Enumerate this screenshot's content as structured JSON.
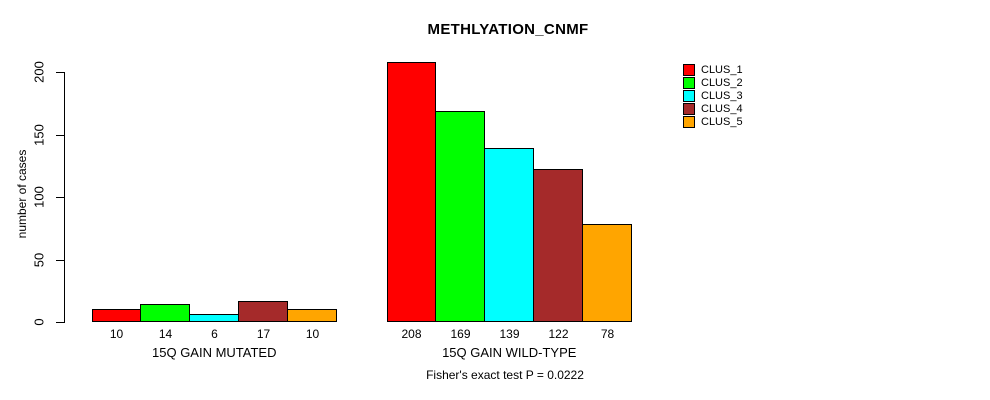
{
  "chart_data": {
    "type": "bar",
    "title": "METHLYATION_CNMF",
    "xlabel": "",
    "ylabel": "number of cases",
    "categories": [
      "15Q GAIN MUTATED",
      "15Q GAIN WILD-TYPE"
    ],
    "series": [
      {
        "name": "CLUS_1",
        "color": "#FF0000",
        "values": [
          10,
          208
        ]
      },
      {
        "name": "CLUS_2",
        "color": "#00FF00",
        "values": [
          14,
          169
        ]
      },
      {
        "name": "CLUS_3",
        "color": "#00FFFF",
        "values": [
          6,
          139
        ]
      },
      {
        "name": "CLUS_4",
        "color": "#A52A2A",
        "values": [
          17,
          122
        ]
      },
      {
        "name": "CLUS_5",
        "color": "#FFA500",
        "values": [
          10,
          78
        ]
      }
    ],
    "yticks": [
      0,
      50,
      100,
      150,
      200
    ],
    "ylim": [
      0,
      208
    ],
    "grid": false,
    "bar_value_labels": true,
    "legend_position": "top-right",
    "annotation": "Fisher's exact test P = 0.0222",
    "axis_color": "#000000",
    "background_color": "#FFFFFF"
  }
}
